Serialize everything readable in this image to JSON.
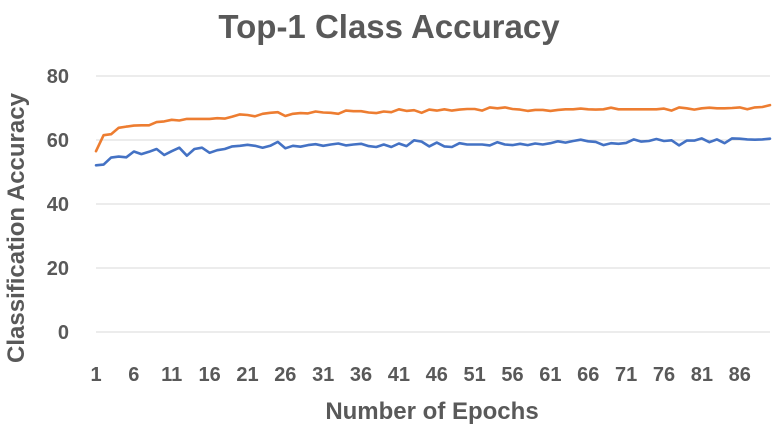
{
  "chart_data": {
    "type": "line",
    "title": "Top-1 Class Accuracy",
    "xlabel": "Number of Epochs",
    "ylabel": "Classification Accuracy",
    "ylim": [
      0,
      80
    ],
    "yticks": [
      0,
      20,
      40,
      60,
      80
    ],
    "xlim": [
      1,
      90
    ],
    "xticks": [
      1,
      6,
      11,
      16,
      21,
      26,
      31,
      36,
      41,
      46,
      51,
      56,
      61,
      66,
      71,
      76,
      81,
      86
    ],
    "grid": true,
    "legend": "none",
    "x": [
      1,
      2,
      3,
      4,
      5,
      6,
      7,
      8,
      9,
      10,
      11,
      12,
      13,
      14,
      15,
      16,
      17,
      18,
      19,
      20,
      21,
      22,
      23,
      24,
      25,
      26,
      27,
      28,
      29,
      30,
      31,
      32,
      33,
      34,
      35,
      36,
      37,
      38,
      39,
      40,
      41,
      42,
      43,
      44,
      45,
      46,
      47,
      48,
      49,
      50,
      51,
      52,
      53,
      54,
      55,
      56,
      57,
      58,
      59,
      60,
      61,
      62,
      63,
      64,
      65,
      66,
      67,
      68,
      69,
      70,
      71,
      72,
      73,
      74,
      75,
      76,
      77,
      78,
      79,
      80,
      81,
      82,
      83,
      84,
      85,
      86,
      87,
      88,
      89,
      90
    ],
    "series": [
      {
        "color": "#ed7d31",
        "values": [
          56.5,
          61.5,
          61.8,
          63.8,
          64.2,
          64.5,
          64.6,
          64.6,
          65.6,
          65.8,
          66.3,
          66.1,
          66.6,
          66.6,
          66.6,
          66.6,
          66.8,
          66.7,
          67.3,
          68.0,
          67.8,
          67.4,
          68.2,
          68.5,
          68.7,
          67.5,
          68.2,
          68.4,
          68.3,
          68.9,
          68.6,
          68.5,
          68.2,
          69.2,
          69.0,
          69.0,
          68.6,
          68.4,
          68.9,
          68.7,
          69.6,
          69.1,
          69.3,
          68.5,
          69.5,
          69.2,
          69.6,
          69.2,
          69.5,
          69.7,
          69.7,
          69.2,
          70.2,
          69.9,
          70.2,
          69.7,
          69.5,
          69.1,
          69.4,
          69.4,
          69.1,
          69.4,
          69.6,
          69.6,
          69.8,
          69.6,
          69.5,
          69.6,
          70.1,
          69.6,
          69.6,
          69.6,
          69.6,
          69.6,
          69.6,
          69.8,
          69.2,
          70.2,
          69.9,
          69.5,
          69.9,
          70.1,
          69.9,
          69.9,
          70.0,
          70.2,
          69.6,
          70.2,
          70.3,
          70.9
        ]
      },
      {
        "color": "#4472c4",
        "values": [
          52.1,
          52.3,
          54.5,
          54.8,
          54.6,
          56.4,
          55.6,
          56.3,
          57.2,
          55.3,
          56.5,
          57.6,
          55.1,
          57.2,
          57.6,
          56.0,
          56.8,
          57.2,
          58.0,
          58.2,
          58.5,
          58.2,
          57.6,
          58.2,
          59.4,
          57.4,
          58.2,
          57.9,
          58.4,
          58.7,
          58.2,
          58.6,
          58.9,
          58.3,
          58.6,
          58.8,
          58.1,
          57.8,
          58.6,
          57.8,
          58.9,
          58.1,
          59.9,
          59.5,
          58.0,
          59.2,
          58.0,
          57.8,
          59.0,
          58.6,
          58.6,
          58.6,
          58.3,
          59.3,
          58.6,
          58.4,
          58.8,
          58.4,
          58.9,
          58.6,
          59.0,
          59.6,
          59.2,
          59.7,
          60.1,
          59.6,
          59.4,
          58.4,
          59.0,
          58.8,
          59.1,
          60.2,
          59.5,
          59.7,
          60.3,
          59.7,
          59.9,
          58.3,
          59.8,
          59.8,
          60.5,
          59.3,
          60.2,
          59.0,
          60.5,
          60.4,
          60.2,
          60.1,
          60.2,
          60.4
        ]
      }
    ]
  }
}
